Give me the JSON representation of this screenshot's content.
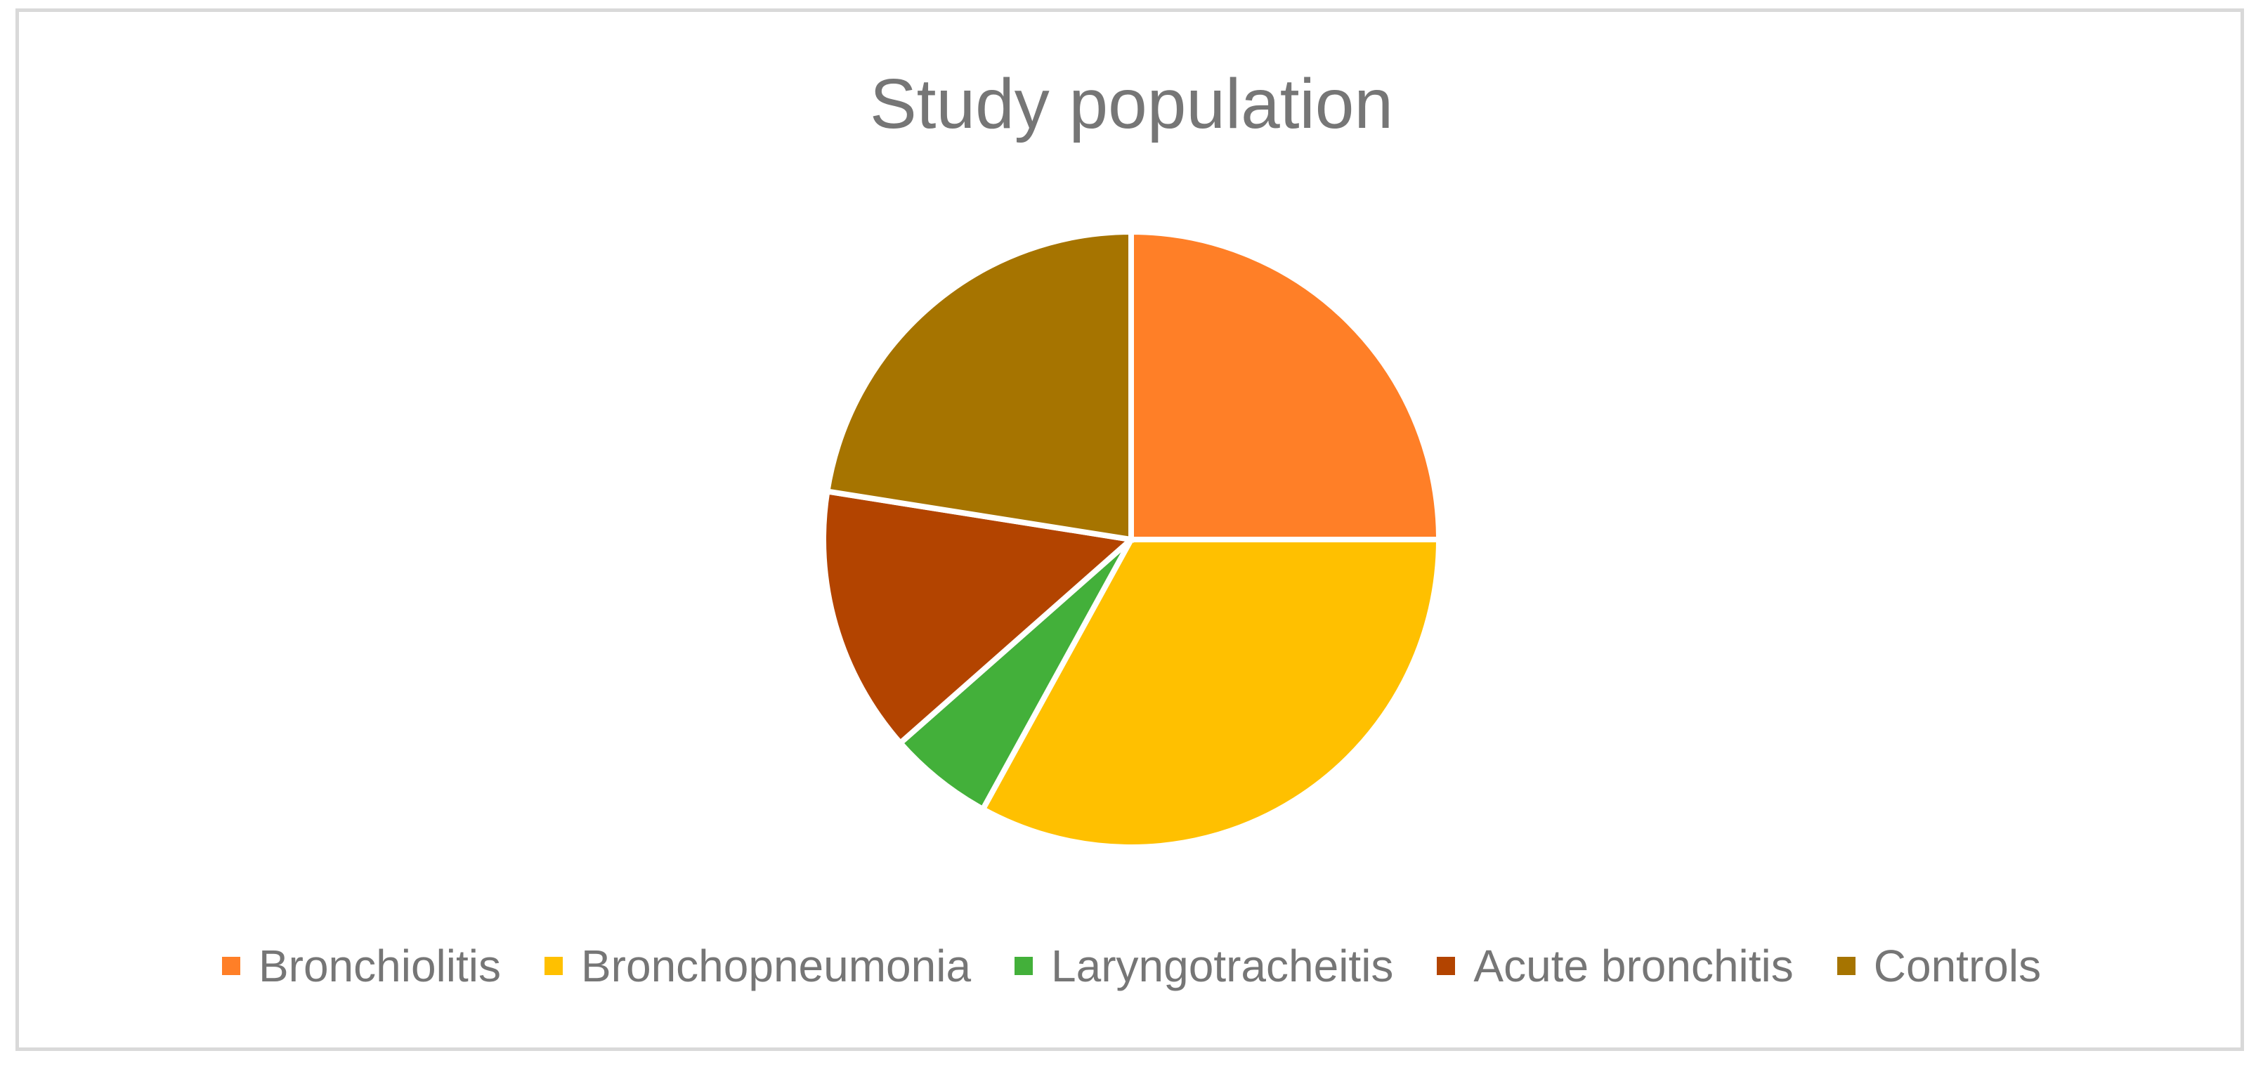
{
  "chart_data": {
    "type": "pie",
    "title": "Study population",
    "categories": [
      "Bronchiolitis",
      "Bronchopneumonia",
      "Laryngotracheitis",
      "Acute bronchitis",
      "Controls"
    ],
    "values": [
      25,
      33,
      5.5,
      14,
      22.5
    ],
    "colors": [
      "#FF7F27",
      "#FFC000",
      "#43B03A",
      "#B34400",
      "#A67400"
    ],
    "legend": "bottom",
    "start_angle_deg": 0,
    "direction": "clockwise"
  }
}
